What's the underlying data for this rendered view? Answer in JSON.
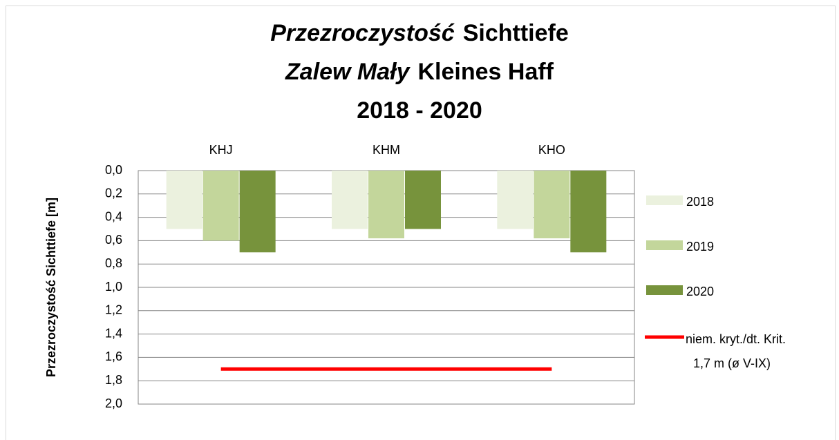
{
  "chart_data": {
    "type": "bar",
    "title": [
      [
        "Przezroczystość",
        "Sichttiefe"
      ],
      [
        "Zalew Mały",
        "Kleines Haff"
      ],
      [
        "2018 - 2020"
      ]
    ],
    "ylabel": "Przezroczystość  Sichttiefe [m]",
    "categories": [
      "KHJ",
      "KHM",
      "KHO"
    ],
    "series": [
      {
        "name": "2018",
        "color": "#ebf1de",
        "values": [
          0.5,
          0.5,
          0.5
        ]
      },
      {
        "name": "2019",
        "color": "#c3d69b",
        "values": [
          0.6,
          0.58,
          0.58
        ]
      },
      {
        "name": "2020",
        "color": "#77933c",
        "values": [
          0.7,
          0.5,
          0.7
        ]
      }
    ],
    "reference_line": {
      "type": "line",
      "name": [
        "niem. kryt./dt. Krit.",
        "1,7 m (ø V-IX)"
      ],
      "color": "#ff0000",
      "values": [
        1.7,
        1.7,
        1.7
      ]
    },
    "ylim": [
      0,
      2
    ],
    "y_inverted": true,
    "yticks": [
      {
        "value": 0,
        "label": "0,0"
      },
      {
        "value": 0.2,
        "label": "0,2"
      },
      {
        "value": 0.4,
        "label": "0,4"
      },
      {
        "value": 0.6,
        "label": "0,6"
      },
      {
        "value": 0.8,
        "label": "0,8"
      },
      {
        "value": 1,
        "label": "1,0"
      },
      {
        "value": 1.2,
        "label": "1,2"
      },
      {
        "value": 1.4,
        "label": "1,4"
      },
      {
        "value": 1.6,
        "label": "1,6"
      },
      {
        "value": 1.8,
        "label": "1,8"
      },
      {
        "value": 2,
        "label": "2,0"
      }
    ],
    "grid": true,
    "legend": "right"
  }
}
